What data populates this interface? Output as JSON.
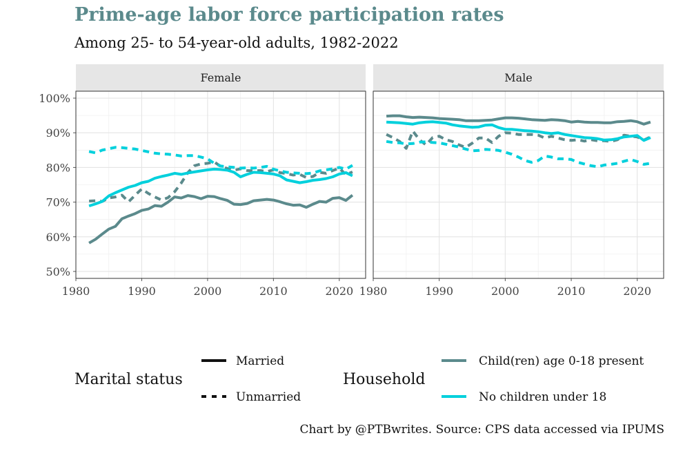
{
  "title": "Prime-age labor force participation rates",
  "subtitle": "Among 25- to 54-year-old adults, 1982-2022",
  "caption": "Chart by @PTBwrites. Source: CPS data accessed via IPUMS",
  "colors": {
    "children_present": "#5b8a8c",
    "no_children": "#00d0dc",
    "panel_bg": "#ffffff",
    "strip_bg": "#e6e6e6",
    "grid": "#e4e4e4"
  },
  "legend": {
    "marital": {
      "title": "Marital status",
      "items": [
        {
          "label": "Married",
          "linetype": "solid"
        },
        {
          "label": "Unmarried",
          "linetype": "dashed"
        }
      ]
    },
    "household": {
      "title": "Household",
      "items": [
        {
          "label": "Child(ren) age 0-18 present",
          "color": "#5b8a8c"
        },
        {
          "label": "No children under 18",
          "color": "#00d0dc"
        }
      ]
    }
  },
  "chart_data": {
    "type": "line",
    "x_start": 1982,
    "xlim": [
      1980,
      2024
    ],
    "ylim": [
      48,
      102
    ],
    "x_ticks": [
      1980,
      1990,
      2000,
      2010,
      2020
    ],
    "x_tick_labels": [
      "1980",
      "1990",
      "2000",
      "2010",
      "2020"
    ],
    "y_ticks": [
      50,
      60,
      70,
      80,
      90,
      100
    ],
    "y_tick_labels": [
      "50%",
      "60%",
      "70%",
      "80%",
      "90%",
      "100%"
    ],
    "grid": true,
    "legend_position": "bottom",
    "panels": [
      {
        "name": "Female",
        "series": [
          {
            "marital": "Married",
            "household": "Child(ren) age 0-18 present",
            "values": [
              58.2,
              59.3,
              60.8,
              62.2,
              63.0,
              65.2,
              66.0,
              66.7,
              67.6,
              68.0,
              69.0,
              68.8,
              70.0,
              71.5,
              71.2,
              71.9,
              71.6,
              71.0,
              71.7,
              71.6,
              71.0,
              70.5,
              69.4,
              69.3,
              69.6,
              70.4,
              70.6,
              70.8,
              70.6,
              70.1,
              69.5,
              69.1,
              69.2,
              68.5,
              69.4,
              70.2,
              70.0,
              71.1,
              71.3,
              70.5,
              72.0
            ]
          },
          {
            "marital": "Unmarried",
            "household": "Child(ren) age 0-18 present",
            "values": [
              70.3,
              70.4,
              70.2,
              71.2,
              71.5,
              72.0,
              70.1,
              72.0,
              73.8,
              72.5,
              71.5,
              70.6,
              71.3,
              73.0,
              75.5,
              78.5,
              80.5,
              81.0,
              81.2,
              81.6,
              80.3,
              79.7,
              79.2,
              79.6,
              79.1,
              79.0,
              79.1,
              78.8,
              79.3,
              78.5,
              78.2,
              77.8,
              78.0,
              77.1,
              77.4,
              78.6,
              78.3,
              79.1,
              79.8,
              77.9,
              78.7
            ]
          },
          {
            "marital": "Married",
            "household": "No children under 18",
            "values": [
              68.9,
              69.5,
              70.2,
              71.8,
              72.7,
              73.5,
              74.3,
              74.8,
              75.6,
              76.0,
              76.9,
              77.4,
              77.8,
              78.3,
              78.0,
              78.4,
              78.7,
              79.0,
              79.3,
              79.5,
              79.4,
              79.2,
              78.6,
              77.3,
              78.0,
              78.6,
              78.5,
              78.3,
              78.1,
              77.6,
              76.4,
              76.0,
              75.6,
              75.9,
              76.3,
              76.5,
              76.8,
              77.3,
              78.1,
              78.5,
              77.6
            ]
          },
          {
            "marital": "Unmarried",
            "household": "No children under 18",
            "values": [
              84.6,
              84.2,
              85.0,
              85.4,
              85.8,
              85.7,
              85.5,
              85.3,
              84.9,
              84.5,
              84.1,
              83.9,
              83.8,
              83.6,
              83.3,
              83.4,
              83.4,
              83.0,
              82.5,
              81.2,
              80.4,
              80.2,
              80.0,
              79.8,
              79.9,
              79.8,
              80.0,
              80.3,
              79.5,
              79.0,
              78.6,
              78.4,
              78.3,
              78.2,
              78.4,
              79.0,
              79.3,
              79.6,
              80.0,
              79.5,
              80.6
            ]
          }
        ]
      },
      {
        "name": "Male",
        "series": [
          {
            "marital": "Married",
            "household": "Child(ren) age 0-18 present",
            "values": [
              94.8,
              94.9,
              94.9,
              94.6,
              94.4,
              94.5,
              94.4,
              94.3,
              94.1,
              94.0,
              93.9,
              93.8,
              93.5,
              93.5,
              93.5,
              93.6,
              93.7,
              94.0,
              94.3,
              94.3,
              94.2,
              94.0,
              93.8,
              93.7,
              93.6,
              93.8,
              93.7,
              93.5,
              93.1,
              93.3,
              93.1,
              93.0,
              93.0,
              92.9,
              92.9,
              93.2,
              93.3,
              93.5,
              93.2,
              92.5,
              93.1
            ]
          },
          {
            "marital": "Unmarried",
            "household": "Child(ren) age 0-18 present",
            "values": [
              89.5,
              88.6,
              87.5,
              85.5,
              90.5,
              88.0,
              86.5,
              88.6,
              89.0,
              88.0,
              87.5,
              86.5,
              85.8,
              87.0,
              88.5,
              88.5,
              87.2,
              89.0,
              90.0,
              89.9,
              89.5,
              89.5,
              89.5,
              89.3,
              88.5,
              89.0,
              88.5,
              88.0,
              87.8,
              88.0,
              87.6,
              88.0,
              87.7,
              87.7,
              87.5,
              88.0,
              89.3,
              89.0,
              88.8,
              87.9,
              88.8
            ]
          },
          {
            "marital": "Married",
            "household": "No children under 18",
            "values": [
              93.1,
              93.0,
              92.9,
              92.7,
              92.5,
              92.9,
              93.1,
              93.2,
              93.0,
              92.8,
              92.3,
              92.0,
              91.8,
              91.6,
              91.7,
              92.2,
              92.3,
              91.5,
              91.0,
              91.0,
              90.8,
              90.6,
              90.5,
              90.3,
              90.0,
              89.8,
              90.0,
              89.5,
              89.2,
              88.9,
              88.6,
              88.5,
              88.3,
              87.9,
              88.0,
              88.3,
              88.8,
              89.0,
              89.2,
              87.8,
              88.6
            ]
          },
          {
            "marital": "Unmarried",
            "household": "No children under 18",
            "values": [
              87.5,
              87.2,
              87.1,
              86.8,
              86.9,
              87.3,
              87.4,
              87.2,
              87.1,
              86.7,
              86.3,
              85.9,
              85.3,
              84.8,
              84.9,
              85.2,
              85.1,
              84.9,
              84.4,
              83.8,
              83.0,
              82.0,
              81.5,
              82.0,
              83.3,
              83.0,
              82.5,
              82.5,
              82.3,
              81.5,
              81.0,
              80.5,
              80.2,
              80.7,
              80.9,
              81.2,
              81.8,
              82.3,
              81.7,
              80.9,
              81.2
            ]
          }
        ]
      }
    ]
  }
}
